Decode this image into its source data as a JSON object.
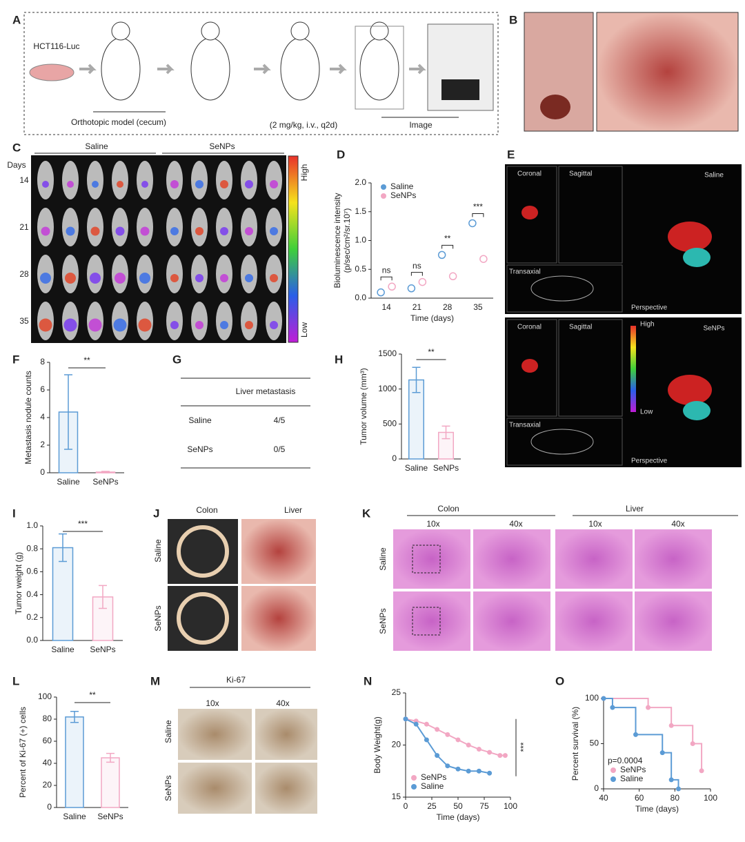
{
  "panel_labels": [
    "A",
    "B",
    "C",
    "D",
    "E",
    "F",
    "G",
    "H",
    "I",
    "J",
    "K",
    "L",
    "M",
    "N",
    "O"
  ],
  "panel_a": {
    "cell_line": "HCT116-Luc",
    "model": "Orthotopic model (cecum)",
    "dosing": "(2 mg/kg, i.v., q2d)",
    "imaging": "Image"
  },
  "panel_c": {
    "groups": [
      "Saline",
      "SeNPs"
    ],
    "row_header": "Days",
    "days": [
      "14",
      "21",
      "28",
      "35"
    ],
    "scale_high": "High",
    "scale_low": "Low"
  },
  "panel_e": {
    "top_group": "Saline",
    "bottom_group": "SeNPs",
    "views": [
      "Coronal",
      "Sagittal",
      "Transaxial",
      "Perspective"
    ],
    "scale_high": "High",
    "scale_low": "Low"
  },
  "panel_g": {
    "header": "Liver metastasis",
    "rows": [
      [
        "Saline",
        "4/5"
      ],
      [
        "SeNPs",
        "0/5"
      ]
    ]
  },
  "panel_j": {
    "columns": [
      "Colon",
      "Liver"
    ],
    "rows": [
      "Saline",
      "SeNPs"
    ]
  },
  "panel_k": {
    "organs": [
      "Colon",
      "Liver"
    ],
    "magnifications": [
      "10x",
      "40x"
    ],
    "rows": [
      "Saline",
      "SeNPs"
    ]
  },
  "panel_m": {
    "stain": "Ki-67",
    "magnifications": [
      "10x",
      "40x"
    ],
    "rows": [
      "Saline",
      "SeNPs"
    ]
  },
  "chart_data": [
    {
      "type": "dot",
      "categories": [
        "14",
        "21",
        "28",
        "35"
      ],
      "series": [
        {
          "name": "Saline",
          "color": "#5b9bd5",
          "values": [
            0.1,
            0.17,
            0.75,
            1.3
          ]
        },
        {
          "name": "SeNPs",
          "color": "#f2a7c3",
          "values": [
            0.2,
            0.28,
            0.38,
            0.68
          ]
        }
      ],
      "annotations": [
        "ns",
        "ns",
        "**",
        "***"
      ],
      "ylim": [
        0,
        2
      ],
      "yticks": [
        {
          "value": 0,
          "label": "0.0"
        },
        0.5,
        {
          "value": 1,
          "label": "1.0"
        },
        1.5,
        {
          "value": 2,
          "label": "2.0"
        }
      ],
      "ylabel": [
        "Bioluminescence intensity",
        "(p/sec/cm²/sr.10⁷)"
      ],
      "xlabel": "Time (days)"
    },
    {
      "type": "bar",
      "categories": [
        "Saline",
        "SeNPs"
      ],
      "values": [
        4.4,
        0.05
      ],
      "errors": [
        2.7,
        0.05
      ],
      "colors": [
        "#5b9bd5",
        "#f2a7c3"
      ],
      "annotation": "**",
      "ylim": [
        0,
        8
      ],
      "yticks": [
        0,
        2,
        4,
        6,
        8
      ],
      "ylabel": "Metastasis nodule counts"
    },
    {
      "type": "bar",
      "categories": [
        "Saline",
        "SeNPs"
      ],
      "values": [
        1130,
        380
      ],
      "errors": [
        180,
        90
      ],
      "colors": [
        "#5b9bd5",
        "#f2a7c3"
      ],
      "annotation": "**",
      "ylim": [
        0,
        1500
      ],
      "yticks": [
        0,
        500,
        1000,
        1500
      ],
      "ylabel": "Tumor volume (mm³)"
    },
    {
      "type": "bar",
      "categories": [
        "Saline",
        "SeNPs"
      ],
      "values": [
        0.81,
        0.38
      ],
      "errors": [
        0.12,
        0.1
      ],
      "colors": [
        "#5b9bd5",
        "#f2a7c3"
      ],
      "annotation": "***",
      "ylim": [
        0,
        1
      ],
      "yticks": [
        {
          "value": 0,
          "label": "0.0"
        },
        0.2,
        0.4,
        0.6,
        0.8,
        {
          "value": 1,
          "label": "1.0"
        }
      ],
      "ylabel": "Tumor weight (g)"
    },
    {
      "type": "bar",
      "categories": [
        "Saline",
        "SeNPs"
      ],
      "values": [
        82,
        45
      ],
      "errors": [
        5,
        4
      ],
      "colors": [
        "#5b9bd5",
        "#f2a7c3"
      ],
      "annotation": "**",
      "ylim": [
        0,
        100
      ],
      "yticks": [
        0,
        20,
        40,
        60,
        80,
        100
      ],
      "ylabel": "Percent of Ki-67 (+) cells"
    },
    {
      "type": "line",
      "series": [
        {
          "name": "SeNPs",
          "color": "#f2a7c3",
          "x": [
            0,
            10,
            20,
            30,
            40,
            50,
            60,
            70,
            80,
            90,
            95
          ],
          "values": [
            22.5,
            22.3,
            22,
            21.5,
            21,
            20.5,
            20,
            19.6,
            19.3,
            19,
            19
          ]
        },
        {
          "name": "Saline",
          "color": "#5b9bd5",
          "x": [
            0,
            10,
            20,
            30,
            40,
            50,
            60,
            70,
            80
          ],
          "values": [
            22.5,
            22,
            20.5,
            19,
            18,
            17.7,
            17.5,
            17.5,
            17.3
          ]
        }
      ],
      "annotation": "***",
      "xlim": [
        0,
        100
      ],
      "xticks": [
        0,
        25,
        50,
        75,
        100
      ],
      "ylim": [
        15,
        25
      ],
      "yticks": [
        15,
        20,
        25
      ],
      "xlabel": "Time (days)",
      "ylabel": "Body Weight(g)",
      "legend": "lower left"
    },
    {
      "type": "step",
      "series": [
        {
          "name": "SeNPs",
          "color": "#f2a7c3",
          "x": [
            40,
            65,
            78,
            90,
            95
          ],
          "values": [
            100,
            90,
            70,
            50,
            20
          ]
        },
        {
          "name": "Saline",
          "color": "#5b9bd5",
          "x": [
            40,
            45,
            58,
            73,
            78,
            82
          ],
          "values": [
            100,
            90,
            60,
            40,
            10,
            0
          ]
        }
      ],
      "annotation": "p=0.0004",
      "xlim": [
        40,
        100
      ],
      "xticks": [
        40,
        60,
        80,
        100
      ],
      "ylim": [
        0,
        100
      ],
      "yticks": [
        0,
        50,
        100
      ],
      "xlabel": "Time (days)",
      "ylabel": "Percent survival (%)",
      "legend": "lower left"
    }
  ]
}
